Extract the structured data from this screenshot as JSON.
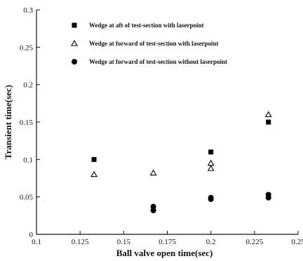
{
  "chart_data": {
    "type": "scatter",
    "xlabel": "Ball valve open time(sec)",
    "ylabel": "Transient time(sec)",
    "xlim": [
      0.1,
      0.25
    ],
    "ylim": [
      0,
      0.3
    ],
    "x_ticks": [
      0.1,
      0.125,
      0.15,
      0.175,
      0.2,
      0.225,
      0.25
    ],
    "x_tick_labels": [
      "0.1",
      "0.125",
      "0.15",
      "0.175",
      "0.2",
      "0.225",
      "0.25"
    ],
    "y_ticks": [
      0,
      0.05,
      0.1,
      0.15,
      0.2,
      0.25,
      0.3
    ],
    "y_tick_labels": [
      "0",
      "0.05",
      "0.1",
      "0.15",
      "0.2",
      "0.25",
      "0.3"
    ],
    "grid": false,
    "legend_position": "top",
    "series": [
      {
        "name": "Wedge at aft of test-section with laserpoint",
        "marker": "square",
        "color": "#000000",
        "points": [
          [
            0.133,
            0.1
          ],
          [
            0.2,
            0.11
          ],
          [
            0.233,
            0.15
          ]
        ]
      },
      {
        "name": "Wedge at forward of test-section with laserpoint",
        "marker": "triangle-open",
        "color": "#000000",
        "points": [
          [
            0.133,
            0.08
          ],
          [
            0.167,
            0.082
          ],
          [
            0.2,
            0.095
          ],
          [
            0.2,
            0.088
          ],
          [
            0.233,
            0.16
          ]
        ]
      },
      {
        "name": "Wedge at forward of test-section without laserpoint",
        "marker": "circle",
        "color": "#000000",
        "points": [
          [
            0.167,
            0.037
          ],
          [
            0.167,
            0.032
          ],
          [
            0.2,
            0.047
          ],
          [
            0.2,
            0.049
          ],
          [
            0.233,
            0.053
          ],
          [
            0.233,
            0.049
          ]
        ]
      }
    ]
  }
}
